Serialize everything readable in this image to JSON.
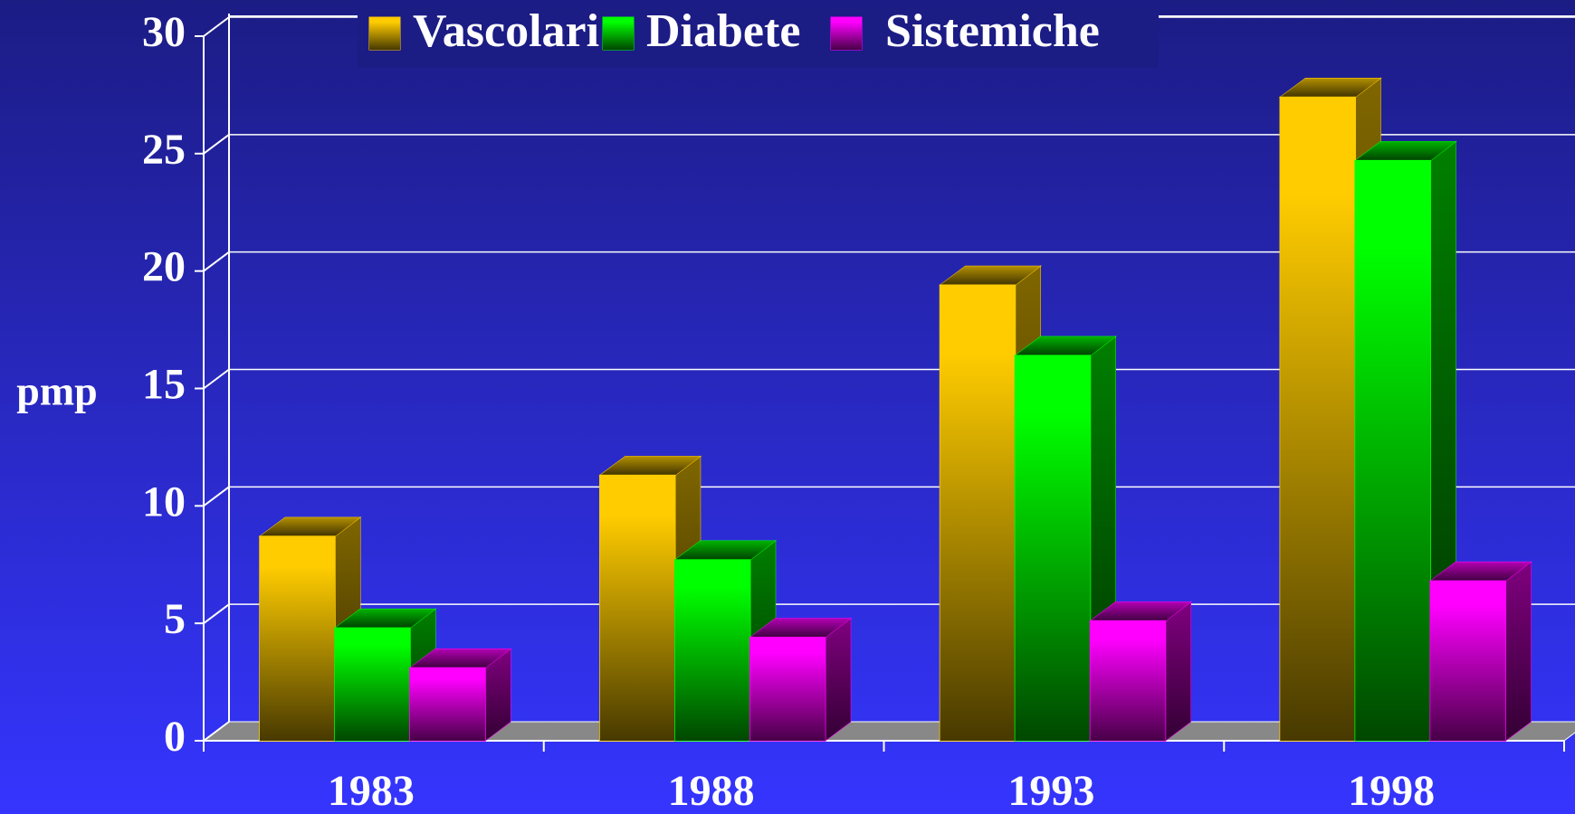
{
  "chart_data": {
    "type": "bar3d",
    "y_label": "pmp",
    "categories": [
      "1983",
      "1988",
      "1993",
      "1998"
    ],
    "series": [
      {
        "name": "Vascolari",
        "color": "#ffcc00",
        "values": [
          8.7,
          11.3,
          19.4,
          27.4
        ]
      },
      {
        "name": "Diabete",
        "color": "#00ff00",
        "values": [
          4.8,
          7.7,
          16.4,
          24.7
        ]
      },
      {
        "name": "Sistemiche",
        "color": "#ff00ff",
        "values": [
          3.1,
          4.4,
          5.1,
          6.8
        ]
      }
    ],
    "ylim": [
      0,
      30
    ],
    "yticks": [
      0,
      5,
      10,
      15,
      20,
      25,
      30
    ],
    "grid": true,
    "legend": "top"
  }
}
